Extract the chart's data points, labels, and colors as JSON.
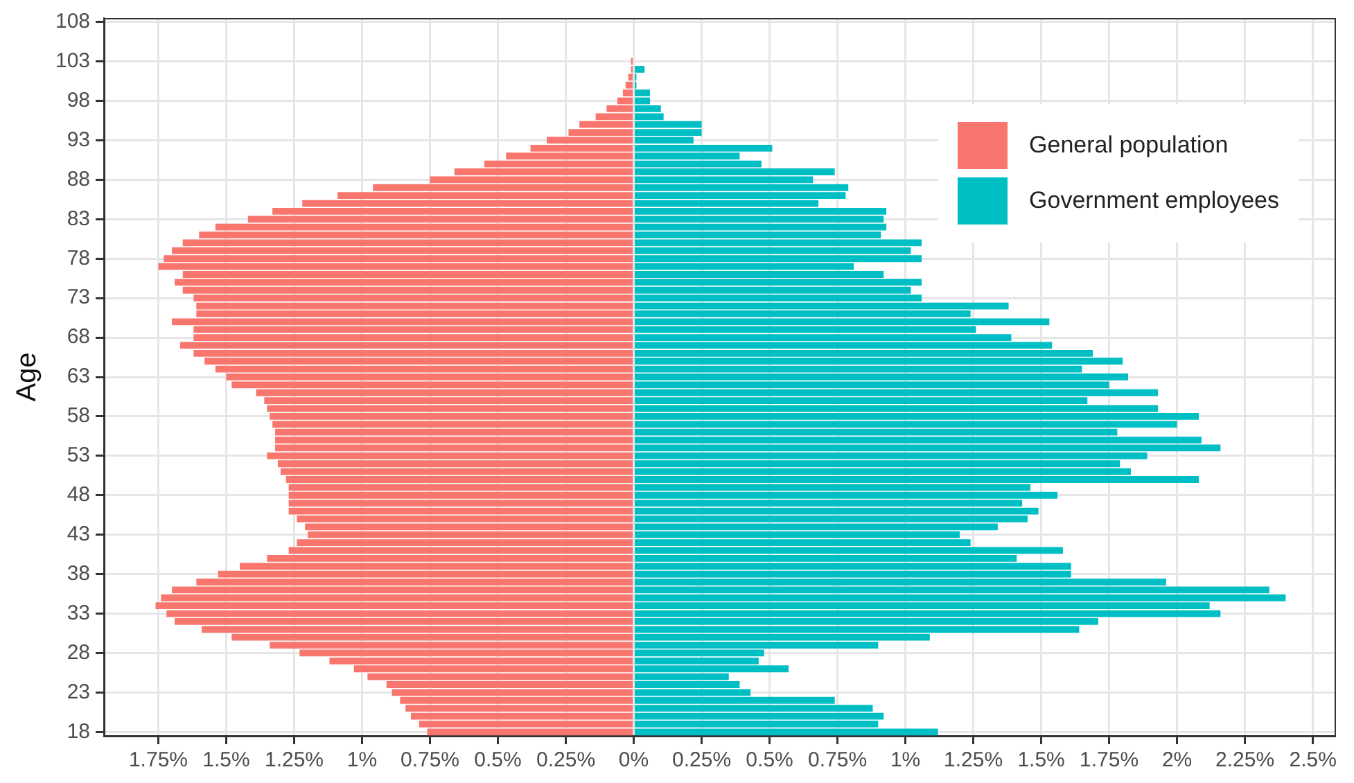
{
  "chart_data": {
    "type": "bar",
    "orientation": "horizontal",
    "stacked": true,
    "ylabel": "Age",
    "grid": true,
    "legend": "top right",
    "categories": [
      "108",
      null,
      null,
      null,
      null,
      "103",
      null,
      null,
      null,
      null,
      "98",
      null,
      null,
      null,
      null,
      "93",
      null,
      null,
      null,
      null,
      "88",
      null,
      null,
      null,
      null,
      "83",
      null,
      null,
      null,
      null,
      "78",
      null,
      null,
      null,
      null,
      "73",
      null,
      null,
      null,
      null,
      "68",
      null,
      null,
      null,
      null,
      "63",
      null,
      null,
      null,
      null,
      "58",
      null,
      null,
      null,
      null,
      "53",
      null,
      null,
      null,
      null,
      "48",
      null,
      null,
      null,
      null,
      "43",
      null,
      null,
      null,
      null,
      "38",
      null,
      null,
      null,
      null,
      "33",
      null,
      null,
      null,
      null,
      "28",
      null,
      null,
      null,
      null,
      "23",
      null,
      null,
      null,
      null,
      "18"
    ],
    "xlim": [
      -1.95,
      2.58
    ],
    "xticks": [
      {
        "value": -1.75,
        "label": "1.75%"
      },
      {
        "value": -1.5,
        "label": "1.5%"
      },
      {
        "value": -1.25,
        "label": "1.25%"
      },
      {
        "value": -1,
        "label": "1%"
      },
      {
        "value": -0.75,
        "label": "0.75%"
      },
      {
        "value": -0.5,
        "label": "0.5%"
      },
      {
        "value": -0.25,
        "label": "0.25%"
      },
      {
        "value": 0,
        "label": "0%"
      },
      {
        "value": 0.25,
        "label": "0.25%"
      },
      {
        "value": 0.5,
        "label": "0.5%"
      },
      {
        "value": 0.75,
        "label": "0.75%"
      },
      {
        "value": 1,
        "label": "1%"
      },
      {
        "value": 1.25,
        "label": "1.25%"
      },
      {
        "value": 1.5,
        "label": "1.5%"
      },
      {
        "value": 1.75,
        "label": "1.75%"
      },
      {
        "value": 2,
        "label": "2%"
      },
      {
        "value": 2.25,
        "label": "2.25%"
      },
      {
        "value": 2.5,
        "label": "2.5%"
      }
    ],
    "series": [
      {
        "name": "General population",
        "color": "#f8766d",
        "values": [
          null,
          null,
          null,
          null,
          null,
          -0.01,
          -0.01,
          -0.02,
          -0.03,
          -0.04,
          -0.06,
          -0.1,
          -0.14,
          -0.2,
          -0.24,
          -0.32,
          -0.38,
          -0.47,
          -0.55,
          -0.66,
          -0.75,
          -0.96,
          -1.09,
          -1.22,
          -1.33,
          -1.42,
          -1.54,
          -1.6,
          -1.66,
          -1.7,
          -1.73,
          -1.75,
          -1.66,
          -1.69,
          -1.66,
          -1.62,
          -1.61,
          -1.61,
          -1.7,
          -1.62,
          -1.62,
          -1.67,
          -1.62,
          -1.58,
          -1.54,
          -1.5,
          -1.48,
          -1.39,
          -1.36,
          -1.35,
          -1.34,
          -1.33,
          -1.32,
          -1.32,
          -1.32,
          -1.35,
          -1.31,
          -1.3,
          -1.28,
          -1.27,
          -1.27,
          -1.27,
          -1.27,
          -1.24,
          -1.21,
          -1.2,
          -1.24,
          -1.27,
          -1.35,
          -1.45,
          -1.53,
          -1.61,
          -1.7,
          -1.74,
          -1.76,
          -1.72,
          -1.69,
          -1.59,
          -1.48,
          -1.34,
          -1.23,
          -1.12,
          -1.03,
          -0.98,
          -0.91,
          -0.89,
          -0.86,
          -0.84,
          -0.82,
          -0.79,
          -0.76
        ]
      },
      {
        "name": "Government employees",
        "color": "#00bfc4",
        "values": [
          null,
          null,
          null,
          null,
          null,
          null,
          0.04,
          0.01,
          0.01,
          0.06,
          0.06,
          0.1,
          0.11,
          0.25,
          0.25,
          0.22,
          0.51,
          0.39,
          0.47,
          0.74,
          0.66,
          0.79,
          0.78,
          0.68,
          0.93,
          0.92,
          0.93,
          0.91,
          1.06,
          1.02,
          1.06,
          0.81,
          0.92,
          1.06,
          1.02,
          1.06,
          1.38,
          1.24,
          1.53,
          1.26,
          1.39,
          1.54,
          1.69,
          1.8,
          1.65,
          1.82,
          1.75,
          1.93,
          1.67,
          1.93,
          2.08,
          2.0,
          1.78,
          2.09,
          2.16,
          1.89,
          1.79,
          1.83,
          2.08,
          1.46,
          1.56,
          1.43,
          1.49,
          1.45,
          1.34,
          1.2,
          1.24,
          1.58,
          1.41,
          1.61,
          1.61,
          1.96,
          2.34,
          2.4,
          2.12,
          2.16,
          1.71,
          1.64,
          1.09,
          0.9,
          0.48,
          0.46,
          0.57,
          0.35,
          0.39,
          0.43,
          0.74,
          0.88,
          0.92,
          0.9,
          1.12
        ]
      }
    ]
  }
}
